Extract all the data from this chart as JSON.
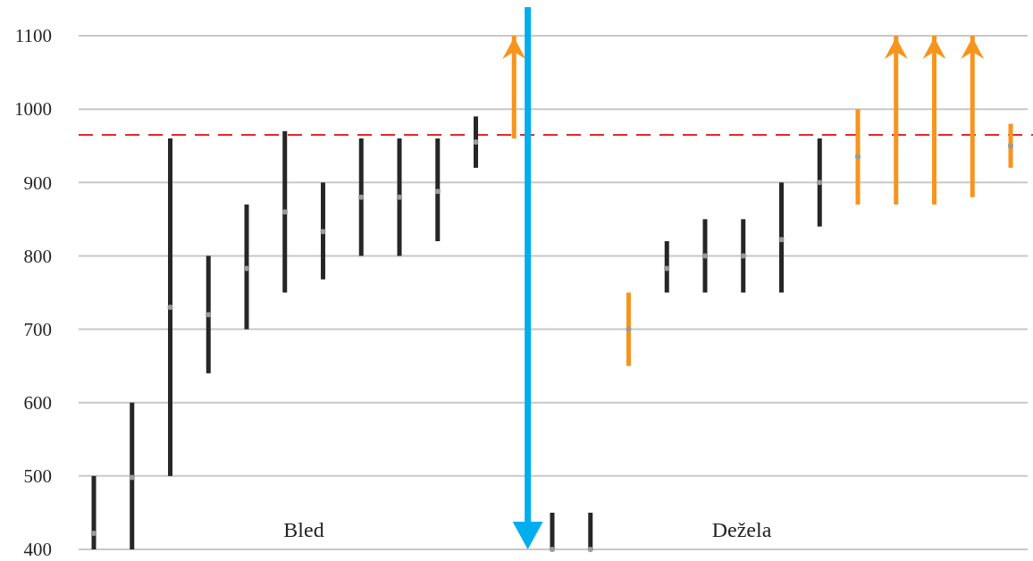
{
  "chart_data": {
    "type": "bar",
    "categories": [
      null,
      null,
      null,
      null,
      null,
      null,
      null,
      null,
      null,
      null,
      null,
      null,
      null,
      null,
      null,
      null,
      null,
      null,
      null,
      null,
      null,
      null,
      null,
      null,
      null
    ],
    "series": [
      {
        "base": [
          400,
          400,
          500,
          640,
          700,
          750,
          768,
          800,
          800,
          820,
          920,
          960,
          400,
          400,
          650,
          750,
          750,
          750,
          750,
          840,
          870,
          870,
          870,
          880,
          920
        ],
        "values": [
          100,
          200,
          460,
          160,
          170,
          220,
          132,
          160,
          160,
          140,
          70,
          140,
          50,
          50,
          100,
          70,
          100,
          100,
          150,
          120,
          130,
          230,
          230,
          220,
          60
        ],
        "colors": [
          "#262626",
          "#262626",
          "#262626",
          "#262626",
          "#262626",
          "#262626",
          "#262626",
          "#262626",
          "#262626",
          "#262626",
          "#262626",
          "#f7941d",
          "#262626",
          "#262626",
          "#f7941d",
          "#262626",
          "#262626",
          "#262626",
          "#262626",
          "#262626",
          "#f7941d",
          "#f7941d",
          "#f7941d",
          "#f7941d",
          "#f7941d"
        ]
      },
      {
        "type": "scatter",
        "color": "#9a9a9a",
        "values": [
          422,
          498,
          730,
          720,
          783,
          860,
          833,
          880,
          880,
          888,
          955,
          null,
          400,
          400,
          700,
          783,
          800,
          800,
          822,
          900,
          935,
          null,
          null,
          null,
          950
        ]
      }
    ],
    "ylim": [
      400,
      1100
    ],
    "yticks": [
      400,
      500,
      600,
      700,
      800,
      900,
      1000,
      1100
    ],
    "grid": "y",
    "tick_labels": "y",
    "marker": "circle",
    "ref_lines": [
      {
        "axis": "y",
        "value": 965,
        "color": "#e8262a",
        "line_style": "dashed"
      }
    ],
    "annotations": [
      "Bled",
      "Dežela"
    ]
  }
}
